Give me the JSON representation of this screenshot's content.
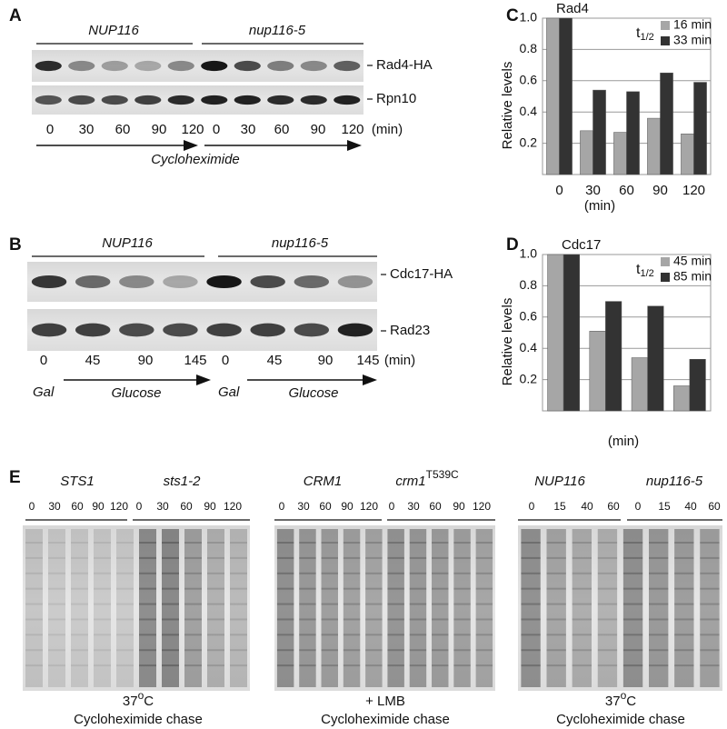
{
  "panel_labels": [
    "A",
    "B",
    "C",
    "D",
    "E"
  ],
  "panel_a": {
    "strains": [
      "NUP116",
      "nup116-5"
    ],
    "bands": [
      "Rad4-HA",
      "Rpn10"
    ],
    "times": [
      0,
      30,
      60,
      90,
      120
    ],
    "unit": "(min)",
    "treatment": "Cycloheximide"
  },
  "panel_b": {
    "strains": [
      "NUP116",
      "nup116-5"
    ],
    "bands": [
      "Cdc17-HA",
      "Rad23"
    ],
    "times": [
      0,
      45,
      90,
      145
    ],
    "unit": "(min)",
    "media": [
      "Gal",
      "Glucose"
    ]
  },
  "panel_e": [
    {
      "strains": [
        {
          "name": "STS1"
        },
        {
          "name": "sts1-2"
        }
      ],
      "times": [
        0,
        30,
        60,
        90,
        120
      ],
      "caption": {
        "main": "37",
        "sup": "o",
        "tail": "C"
      },
      "chase": "Cycloheximide chase"
    },
    {
      "strains": [
        {
          "name": "CRM1"
        },
        {
          "name": "crm1",
          "sup": "T539C"
        }
      ],
      "times": [
        0,
        30,
        60,
        90,
        120
      ],
      "caption": {
        "main": "+ LMB"
      },
      "chase": "Cycloheximide chase"
    },
    {
      "strains": [
        {
          "name": "NUP116"
        },
        {
          "name": "nup116-5"
        }
      ],
      "times": [
        0,
        15,
        40,
        60
      ],
      "caption": {
        "main": "37",
        "sup": "o",
        "tail": "C"
      },
      "chase": "Cycloheximide chase"
    }
  ],
  "chart_data": [
    {
      "type": "bar",
      "title": "Rad4",
      "y_label": "Relative levels",
      "x_label": "(min)",
      "categories": [
        0,
        30,
        60,
        90,
        120
      ],
      "legend_title": "t",
      "legend_title_sub": "1/2",
      "series": [
        {
          "name": "16 min",
          "color": "#a6a6a6",
          "values": [
            1,
            0.28,
            0.27,
            0.36,
            0.26
          ]
        },
        {
          "name": "33 min",
          "color": "#333333",
          "values": [
            1,
            0.54,
            0.53,
            0.65,
            0.59
          ]
        }
      ],
      "ylim": [
        0,
        1
      ],
      "yticks": [
        0.2,
        0.4,
        0.6,
        0.8,
        {
          "value": 1,
          "label": "1.0"
        }
      ],
      "grid": true
    },
    {
      "type": "bar",
      "title": "Cdc17",
      "y_label": "Relative levels",
      "x_label": "(min)",
      "categories": [
        null,
        null,
        null,
        null
      ],
      "legend_title": "t",
      "legend_title_sub": "1/2",
      "series": [
        {
          "name": "45 min",
          "color": "#a6a6a6",
          "values": [
            1,
            0.51,
            0.34,
            0.16
          ]
        },
        {
          "name": "85 min",
          "color": "#333333",
          "values": [
            1,
            0.7,
            0.67,
            0.33
          ]
        }
      ],
      "ylim": [
        0,
        1
      ],
      "yticks": [
        0.2,
        0.4,
        0.6,
        0.8,
        {
          "value": 1,
          "label": "1.0"
        }
      ],
      "grid": true
    }
  ]
}
